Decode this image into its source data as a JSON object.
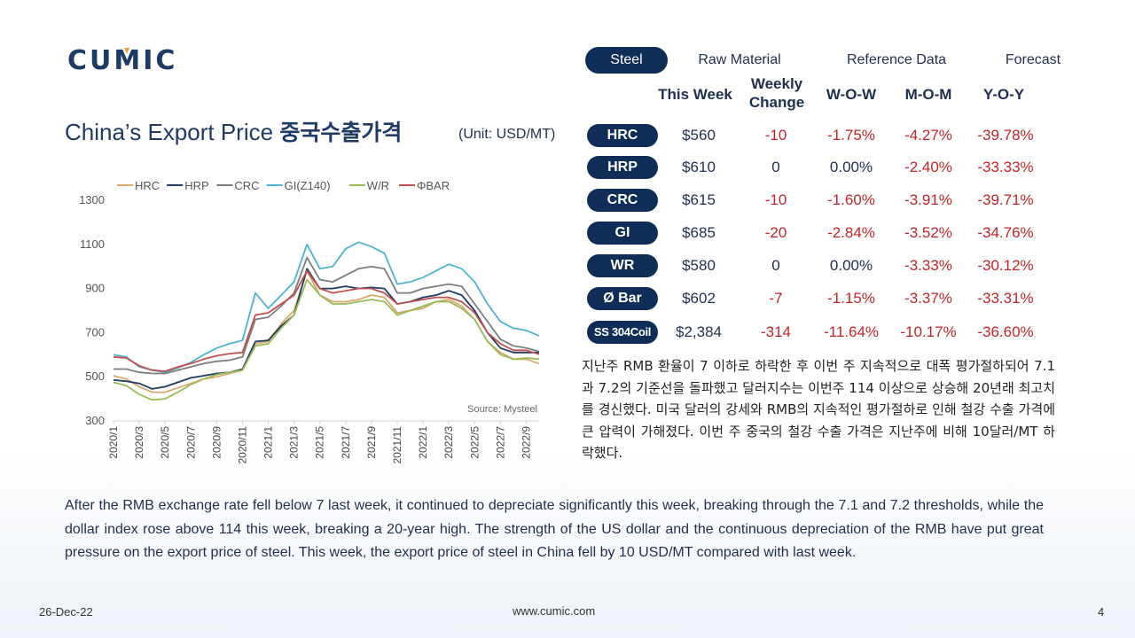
{
  "brand": {
    "logo_text": "CUMIC"
  },
  "tabs": [
    {
      "label": "Steel",
      "active": true
    },
    {
      "label": "Raw Material",
      "active": false
    },
    {
      "label": "Reference Data",
      "active": false
    },
    {
      "label": "Forecast",
      "active": false
    }
  ],
  "title": {
    "en": "China’s Export Price",
    "kr": "중국수출가격",
    "unit": "(Unit: USD/MT)"
  },
  "table": {
    "headers": {
      "this_week": "This Week",
      "weekly_change": "Weekly Change",
      "wow": "W-O-W",
      "mom": "M-O-M",
      "yoy": "Y-O-Y"
    },
    "rows": [
      {
        "product": "HRC",
        "price": "$560",
        "change": "-10",
        "wow": "-1.75%",
        "mom": "-4.27%",
        "yoy": "-39.78%"
      },
      {
        "product": "HRP",
        "price": "$610",
        "change": "0",
        "wow": "0.00%",
        "mom": "-2.40%",
        "yoy": "-33.33%"
      },
      {
        "product": "CRC",
        "price": "$615",
        "change": "-10",
        "wow": "-1.60%",
        "mom": "-3.91%",
        "yoy": "-39.71%"
      },
      {
        "product": "GI",
        "price": "$685",
        "change": "-20",
        "wow": "-2.84%",
        "mom": "-3.52%",
        "yoy": "-34.76%"
      },
      {
        "product": "WR",
        "price": "$580",
        "change": "0",
        "wow": "0.00%",
        "mom": "-3.33%",
        "yoy": "-30.12%"
      },
      {
        "product": "Ø Bar",
        "price": "$602",
        "change": "-7",
        "wow": "-1.15%",
        "mom": "-3.37%",
        "yoy": "-33.31%"
      },
      {
        "product": "SS 304Coil",
        "price": "$2,384",
        "change": "-314",
        "wow": "-11.64%",
        "mom": "-10.17%",
        "yoy": "-36.60%"
      }
    ]
  },
  "commentary": {
    "kr": "지난주 RMB 환율이 7 이하로 하락한 후 이번 주 지속적으로 대폭 평가절하되어 7.1과 7.2의 기준선을 돌파했고 달러지수는 이번주 114 이상으로 상승해 20년래 최고치를 경신했다. 미국 달러의 강세와 RMB의 지속적인 평가절하로 인해 철강 수출 가격에 큰 압력이 가해졌다. 이번 주 중국의 철강 수출 가격은 지난주에 비해 10달러/MT 하락했다.",
    "en": "After the RMB exchange rate fell below 7 last week, it continued to depreciate significantly this week, breaking through the 7.1 and 7.2 thresholds, while the dollar index rose above 114 this week, breaking a 20-year high. The strength of the US dollar and the continuous depreciation of the RMB have put great pressure on the export price of steel. This week, the export price of steel in China fell by 10 USD/MT compared with last week."
  },
  "footer": {
    "date": "26-Dec-22",
    "website": "www.cumic.com",
    "page": "4"
  },
  "chart_data": {
    "type": "line",
    "source_note": "Source: Mysteel",
    "x": [
      "2020/1",
      "2020/2",
      "2020/3",
      "2020/4",
      "2020/5",
      "2020/6",
      "2020/7",
      "2020/8",
      "2020/9",
      "2020/10",
      "2020/11",
      "2020/12",
      "2021/1",
      "2021/2",
      "2021/3",
      "2021/4",
      "2021/5",
      "2021/6",
      "2021/7",
      "2021/8",
      "2021/9",
      "2021/10",
      "2021/11",
      "2021/12",
      "2022/1",
      "2022/2",
      "2022/3",
      "2022/4",
      "2022/5",
      "2022/6",
      "2022/7",
      "2022/8",
      "2022/9",
      "2022/10"
    ],
    "x_tick_labels": [
      "2020/1",
      "2020/3",
      "2020/5",
      "2020/7",
      "2020/9",
      "2020/11",
      "2021/1",
      "2021/3",
      "2021/5",
      "2021/7",
      "2021/9",
      "2021/11",
      "2022/1",
      "2022/3",
      "2022/5",
      "2022/7",
      "2022/9"
    ],
    "ylim": [
      300,
      1300
    ],
    "yticks": [
      300,
      500,
      700,
      900,
      1100,
      1300
    ],
    "grid": false,
    "legend_position": "top",
    "series": [
      {
        "name": "HRC",
        "color": "#d9a86c",
        "values": [
          505,
          490,
          455,
          430,
          430,
          450,
          470,
          490,
          500,
          515,
          530,
          650,
          660,
          740,
          800,
          980,
          870,
          840,
          840,
          850,
          870,
          860,
          790,
          800,
          810,
          840,
          850,
          820,
          760,
          660,
          610,
          580,
          580,
          560
        ]
      },
      {
        "name": "HRP",
        "color": "#1f3a63",
        "values": [
          485,
          480,
          470,
          445,
          455,
          475,
          495,
          505,
          515,
          520,
          535,
          660,
          665,
          730,
          780,
          990,
          900,
          900,
          910,
          900,
          905,
          900,
          830,
          840,
          860,
          870,
          890,
          870,
          800,
          700,
          630,
          610,
          610,
          610
        ]
      },
      {
        "name": "CRC",
        "color": "#7d7d7d",
        "values": [
          535,
          535,
          520,
          515,
          515,
          530,
          545,
          560,
          570,
          575,
          590,
          760,
          770,
          820,
          880,
          1040,
          940,
          930,
          960,
          990,
          1000,
          990,
          880,
          880,
          900,
          910,
          920,
          910,
          830,
          750,
          670,
          640,
          630,
          615
        ]
      },
      {
        "name": "GI(Z140)",
        "color": "#4fb3cf",
        "values": [
          600,
          590,
          545,
          530,
          520,
          540,
          565,
          600,
          630,
          650,
          665,
          880,
          810,
          870,
          930,
          1100,
          990,
          1000,
          1080,
          1110,
          1090,
          1060,
          920,
          930,
          950,
          980,
          1010,
          990,
          930,
          830,
          750,
          720,
          710,
          685
        ]
      },
      {
        "name": "W/R",
        "color": "#9bbb59",
        "values": [
          475,
          460,
          420,
          395,
          400,
          430,
          465,
          490,
          510,
          520,
          530,
          640,
          650,
          720,
          780,
          940,
          870,
          830,
          830,
          840,
          850,
          840,
          780,
          800,
          820,
          840,
          840,
          810,
          760,
          660,
          600,
          580,
          585,
          580
        ]
      },
      {
        "name": "ΦBAR",
        "color": "#c0504d",
        "values": [
          590,
          585,
          550,
          530,
          525,
          545,
          560,
          580,
          595,
          605,
          610,
          780,
          790,
          830,
          870,
          980,
          900,
          880,
          890,
          900,
          900,
          880,
          830,
          840,
          850,
          860,
          860,
          840,
          790,
          700,
          650,
          620,
          620,
          602
        ]
      }
    ]
  }
}
